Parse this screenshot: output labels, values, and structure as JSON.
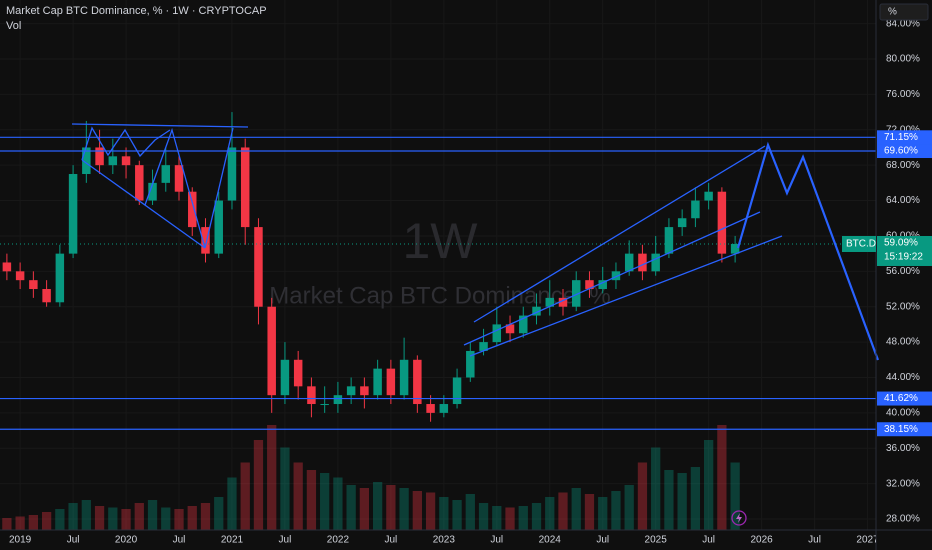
{
  "chart_data": {
    "type": "candlestick",
    "title": "Market Cap BTC Dominance, % · 1W · CRYPTOCAP",
    "volume_label": "Vol",
    "unit_button": "%",
    "watermark_interval": "1W",
    "watermark_title": "Market Cap BTC Dominance, %",
    "symbol": "BTC.D",
    "countdown": "15:19:22",
    "last_price": {
      "value": 59.09,
      "label": "59.09%"
    },
    "up_color": "#089981",
    "down_color": "#f23645",
    "line_color": "#2962ff",
    "x": [
      2018.875,
      2019,
      2019.125,
      2019.25,
      2019.375,
      2019.5,
      2019.625,
      2019.75,
      2019.875,
      2020,
      2020.125,
      2020.25,
      2020.375,
      2020.5,
      2020.625,
      2020.75,
      2020.875,
      2021,
      2021.125,
      2021.25,
      2021.375,
      2021.5,
      2021.625,
      2021.75,
      2021.875,
      2022,
      2022.125,
      2022.25,
      2022.375,
      2022.5,
      2022.625,
      2022.75,
      2022.875,
      2023,
      2023.125,
      2023.25,
      2023.375,
      2023.5,
      2023.625,
      2023.75,
      2023.875,
      2024,
      2024.125,
      2024.25,
      2024.375,
      2024.5,
      2024.625,
      2024.75,
      2024.875,
      2025,
      2025.125,
      2025.25,
      2025.375,
      2025.5,
      2025.625,
      2025.75
    ],
    "open": [
      57,
      56,
      55,
      54,
      52.5,
      58,
      67,
      70,
      68,
      69,
      68,
      64,
      66,
      68,
      65,
      61,
      58,
      64,
      70,
      61,
      52,
      42,
      46,
      43,
      41,
      41,
      42,
      43,
      42,
      45,
      42,
      46,
      41,
      40,
      41,
      44,
      47,
      48,
      50,
      49,
      51,
      52,
      53,
      52,
      55,
      54,
      55,
      56,
      58,
      56,
      58,
      61,
      62,
      64,
      65,
      58
    ],
    "high": [
      58,
      57,
      56,
      55,
      59,
      68,
      73,
      72,
      71,
      70,
      68.5,
      67.5,
      70,
      69,
      65.5,
      62,
      65,
      74,
      71,
      62,
      53,
      48,
      47,
      44,
      43,
      43.5,
      44,
      44,
      46,
      46,
      48.5,
      46.5,
      42,
      42,
      45,
      48,
      49.5,
      52,
      51,
      52,
      53.5,
      55,
      54,
      56,
      56,
      56.5,
      57,
      59.5,
      59,
      60,
      62,
      63,
      65.5,
      66,
      65.5,
      60
    ],
    "low": [
      55,
      54,
      53,
      52,
      52,
      57.5,
      66,
      67,
      67,
      66.5,
      63.5,
      63.5,
      65,
      64,
      60,
      57,
      57.5,
      63,
      59,
      50,
      40,
      41,
      41.5,
      39.5,
      40,
      40,
      41,
      40.5,
      41.5,
      41,
      41.5,
      40,
      39,
      39.5,
      40.5,
      43.5,
      46.5,
      47.5,
      48,
      48.5,
      50,
      51,
      51,
      51.5,
      53,
      53.5,
      54,
      55.5,
      55,
      55.5,
      57.5,
      60,
      61,
      63,
      57,
      57
    ],
    "close": [
      56,
      55,
      54,
      52.5,
      58,
      67,
      70,
      68,
      69,
      68,
      64,
      66,
      68,
      65,
      61,
      58,
      64,
      70,
      61,
      52,
      42,
      46,
      43,
      41,
      41,
      42,
      43,
      42,
      45,
      42,
      46,
      41,
      40,
      41,
      44,
      47,
      48,
      50,
      49,
      51,
      52,
      53,
      52,
      55,
      54,
      55,
      56,
      58,
      56,
      58,
      61,
      62,
      64,
      65,
      58,
      59.09
    ],
    "volume": [
      8,
      9,
      10,
      12,
      14,
      18,
      20,
      16,
      15,
      14,
      18,
      20,
      15,
      14,
      16,
      18,
      22,
      35,
      45,
      60,
      70,
      55,
      45,
      40,
      38,
      35,
      30,
      28,
      32,
      30,
      28,
      26,
      25,
      22,
      20,
      24,
      18,
      16,
      15,
      16,
      18,
      22,
      25,
      28,
      24,
      22,
      26,
      30,
      45,
      55,
      40,
      38,
      42,
      60,
      70,
      45
    ],
    "xlim": [
      2018.81,
      2027.08
    ],
    "xticks": [
      {
        "value": 2019,
        "label": "2019"
      },
      {
        "value": 2019.5,
        "label": "Jul"
      },
      {
        "value": 2020,
        "label": "2020"
      },
      {
        "value": 2020.5,
        "label": "Jul"
      },
      {
        "value": 2021,
        "label": "2021"
      },
      {
        "value": 2021.5,
        "label": "Jul"
      },
      {
        "value": 2022,
        "label": "2022"
      },
      {
        "value": 2022.5,
        "label": "Jul"
      },
      {
        "value": 2023,
        "label": "2023"
      },
      {
        "value": 2023.5,
        "label": "Jul"
      },
      {
        "value": 2024,
        "label": "2024"
      },
      {
        "value": 2024.5,
        "label": "Jul"
      },
      {
        "value": 2025,
        "label": "2025"
      },
      {
        "value": 2025.5,
        "label": "Jul"
      },
      {
        "value": 2026,
        "label": "2026"
      },
      {
        "value": 2026.5,
        "label": "Jul"
      },
      {
        "value": 2027,
        "label": "2027"
      }
    ],
    "ylim": [
      26.76,
      86.67
    ],
    "yticks": [
      {
        "value": 84,
        "label": "84.00%"
      },
      {
        "value": 80,
        "label": "80.00%"
      },
      {
        "value": 76,
        "label": "76.00%"
      },
      {
        "value": 72,
        "label": "72.00%"
      },
      {
        "value": 68,
        "label": "68.00%"
      },
      {
        "value": 64,
        "label": "64.00%"
      },
      {
        "value": 60,
        "label": "60.00%"
      },
      {
        "value": 56,
        "label": "56.00%"
      },
      {
        "value": 52,
        "label": "52.00%"
      },
      {
        "value": 48,
        "label": "48.00%"
      },
      {
        "value": 44,
        "label": "44.00%"
      },
      {
        "value": 40,
        "label": "40.00%"
      },
      {
        "value": 36,
        "label": "36.00%"
      },
      {
        "value": 32,
        "label": "32.00%"
      },
      {
        "value": 28,
        "label": "28.00%"
      }
    ],
    "hlines": [
      {
        "value": 71.15,
        "label": "71.15%"
      },
      {
        "value": 69.6,
        "label": "69.60%"
      },
      {
        "value": 41.62,
        "label": "41.62%"
      },
      {
        "value": 38.15,
        "label": "38.15%"
      }
    ],
    "grid": true
  }
}
